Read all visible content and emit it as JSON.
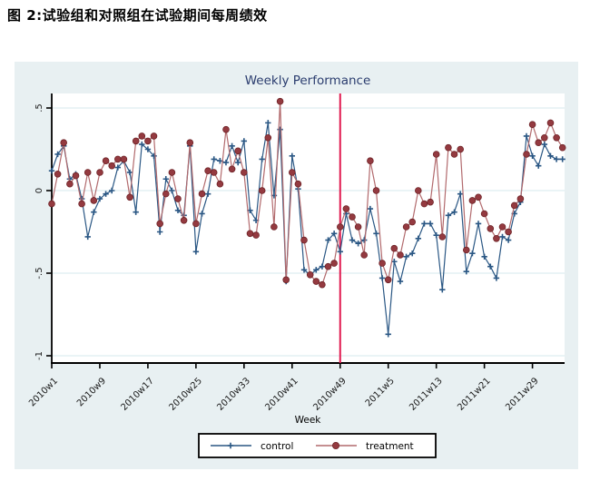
{
  "figure_title": "图 2:试验组和对照组在试验期间每周绩效",
  "chart_data": {
    "type": "line",
    "title": "Weekly Performance",
    "xlabel": "Week",
    "ylabel": "",
    "grid": true,
    "legend_position": "bottom-center",
    "ylim": [
      -1.05,
      0.6
    ],
    "y_tick_labels": [
      ".5",
      "0",
      "-.5",
      "-1"
    ],
    "y_tick_values": [
      0.5,
      0,
      -0.5,
      -1
    ],
    "x_tick_labels": [
      "2010w1",
      "2010w9",
      "2010w17",
      "2010w25",
      "2010w33",
      "2010w41",
      "2010w49",
      "2011w5",
      "2011w13",
      "2011w21",
      "2011w29"
    ],
    "vline": {
      "at": "2010w49",
      "color": "#e01a4f"
    },
    "categories": [
      "2010w1",
      "2010w2",
      "2010w3",
      "2010w4",
      "2010w5",
      "2010w6",
      "2010w7",
      "2010w8",
      "2010w9",
      "2010w10",
      "2010w11",
      "2010w12",
      "2010w13",
      "2010w14",
      "2010w15",
      "2010w16",
      "2010w17",
      "2010w18",
      "2010w19",
      "2010w20",
      "2010w21",
      "2010w22",
      "2010w23",
      "2010w24",
      "2010w25",
      "2010w26",
      "2010w27",
      "2010w28",
      "2010w29",
      "2010w30",
      "2010w31",
      "2010w32",
      "2010w33",
      "2010w34",
      "2010w35",
      "2010w36",
      "2010w37",
      "2010w38",
      "2010w39",
      "2010w40",
      "2010w41",
      "2010w42",
      "2010w43",
      "2010w44",
      "2010w45",
      "2010w46",
      "2010w47",
      "2010w48",
      "2010w49",
      "2010w50",
      "2010w51",
      "2010w52",
      "2011w1",
      "2011w2",
      "2011w3",
      "2011w4",
      "2011w5",
      "2011w6",
      "2011w7",
      "2011w8",
      "2011w9",
      "2011w10",
      "2011w11",
      "2011w12",
      "2011w13",
      "2011w14",
      "2011w15",
      "2011w16",
      "2011w17",
      "2011w18",
      "2011w19",
      "2011w20",
      "2011w21",
      "2011w22",
      "2011w23",
      "2011w24",
      "2011w25",
      "2011w26",
      "2011w27",
      "2011w28",
      "2011w29",
      "2011w30",
      "2011w31",
      "2011w32",
      "2011w33",
      "2011w34"
    ],
    "series": [
      {
        "name": "control",
        "marker": "plus",
        "color": "#2a5784",
        "line_color": "#2a5784",
        "values": [
          0.12,
          0.22,
          0.27,
          0.07,
          0.1,
          -0.05,
          -0.28,
          -0.13,
          -0.05,
          -0.02,
          0.0,
          0.14,
          0.18,
          0.11,
          -0.13,
          0.28,
          0.25,
          0.21,
          -0.25,
          0.07,
          0.0,
          -0.12,
          -0.15,
          0.27,
          -0.37,
          -0.14,
          -0.02,
          0.19,
          0.18,
          0.17,
          0.27,
          0.17,
          0.3,
          -0.12,
          -0.18,
          0.19,
          0.41,
          -0.03,
          0.37,
          -0.55,
          0.21,
          0.01,
          -0.48,
          -0.51,
          -0.48,
          -0.46,
          -0.3,
          -0.26,
          -0.37,
          -0.14,
          -0.3,
          -0.32,
          -0.3,
          -0.11,
          -0.26,
          -0.53,
          -0.87,
          -0.43,
          -0.55,
          -0.4,
          -0.38,
          -0.29,
          -0.2,
          -0.2,
          -0.27,
          -0.6,
          -0.15,
          -0.13,
          -0.02,
          -0.49,
          -0.38,
          -0.2,
          -0.4,
          -0.46,
          -0.53,
          -0.28,
          -0.3,
          -0.14,
          -0.07,
          0.33,
          0.21,
          0.15,
          0.28,
          0.21,
          0.19,
          0.19
        ]
      },
      {
        "name": "treatment",
        "marker": "circle",
        "color": "#943a40",
        "line_color": "#b26a6d",
        "values": [
          -0.08,
          0.1,
          0.29,
          0.04,
          0.09,
          -0.08,
          0.11,
          -0.06,
          0.11,
          0.18,
          0.15,
          0.19,
          0.19,
          -0.04,
          0.3,
          0.33,
          0.3,
          0.33,
          -0.2,
          -0.02,
          0.11,
          -0.05,
          -0.18,
          0.29,
          -0.2,
          -0.02,
          0.12,
          0.11,
          0.04,
          0.37,
          0.13,
          0.24,
          0.11,
          -0.26,
          -0.27,
          0.0,
          0.32,
          -0.22,
          0.54,
          -0.54,
          0.11,
          0.04,
          -0.3,
          -0.51,
          -0.55,
          -0.57,
          -0.46,
          -0.44,
          -0.22,
          -0.11,
          -0.16,
          -0.22,
          -0.39,
          0.18,
          0.0,
          -0.44,
          -0.54,
          -0.35,
          -0.39,
          -0.22,
          -0.19,
          0.0,
          -0.08,
          -0.07,
          0.22,
          -0.28,
          0.26,
          0.22,
          0.25,
          -0.36,
          -0.06,
          -0.04,
          -0.14,
          -0.23,
          -0.29,
          -0.22,
          -0.25,
          -0.09,
          -0.05,
          0.22,
          0.4,
          0.29,
          0.32,
          0.41,
          0.32,
          0.26
        ]
      }
    ],
    "colors": {
      "panel_bg": "#e8f0f2",
      "plot_bg": "#ffffff",
      "grid": "#d6e8ec",
      "title": "#2a3c6e",
      "axis": "#000000",
      "tick_label": "#1a1a1a"
    }
  }
}
